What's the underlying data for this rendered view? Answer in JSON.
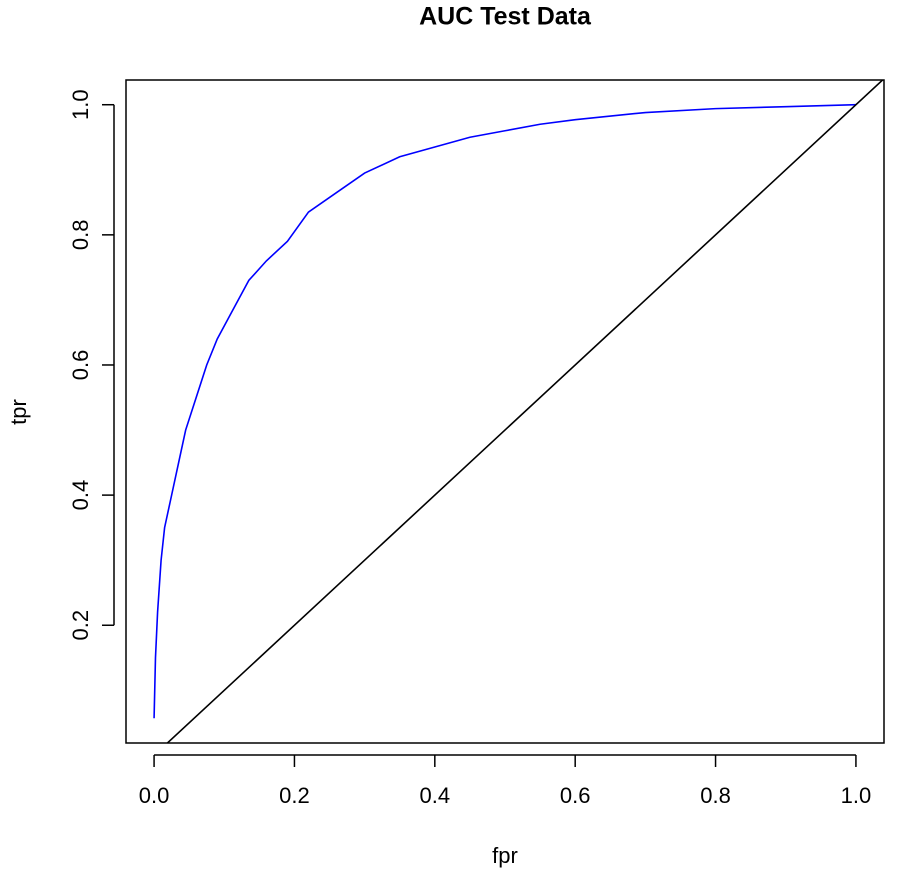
{
  "chart_data": {
    "type": "line",
    "title": "AUC Test Data",
    "xlabel": "fpr",
    "ylabel": "tpr",
    "series": [
      {
        "color": "#0000ff",
        "x": [
          0.0,
          0.002,
          0.005,
          0.01,
          0.015,
          0.025,
          0.035,
          0.045,
          0.06,
          0.075,
          0.09,
          0.11,
          0.135,
          0.16,
          0.19,
          0.22,
          0.26,
          0.3,
          0.35,
          0.4,
          0.45,
          0.5,
          0.55,
          0.6,
          0.7,
          0.8,
          0.9,
          1.0
        ],
        "values": [
          0.057,
          0.15,
          0.22,
          0.3,
          0.35,
          0.4,
          0.45,
          0.5,
          0.55,
          0.6,
          0.64,
          0.68,
          0.73,
          0.76,
          0.79,
          0.835,
          0.865,
          0.895,
          0.92,
          0.935,
          0.95,
          0.96,
          0.97,
          0.977,
          0.988,
          0.994,
          0.997,
          1.0
        ]
      },
      {
        "color": "#000000",
        "x": [
          -0.04,
          1.04
        ],
        "values": [
          -0.04,
          1.04
        ]
      }
    ],
    "xlim": [
      -0.04,
      1.04
    ],
    "ylim": [
      0.019,
      1.038
    ],
    "xticks": [
      {
        "value": 0,
        "label": "0.0"
      },
      0.2,
      0.4,
      0.6,
      0.8,
      {
        "value": 1,
        "label": "1.0"
      }
    ],
    "yticks": [
      0.2,
      0.4,
      0.6,
      0.8,
      {
        "value": 1,
        "label": "1.0"
      }
    ]
  }
}
